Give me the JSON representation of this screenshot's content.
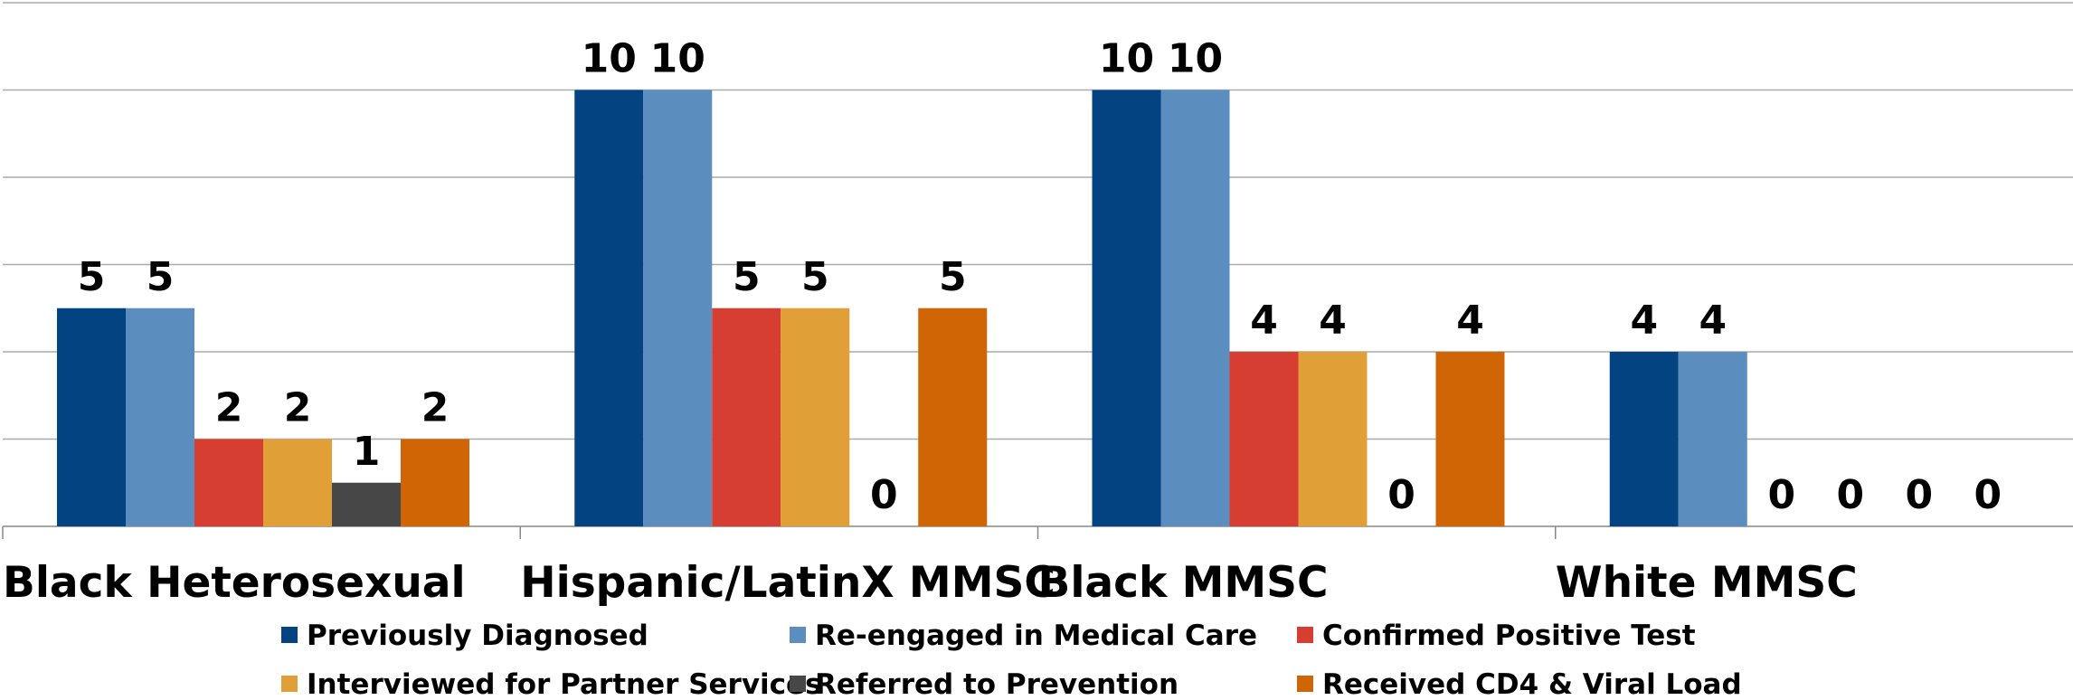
{
  "chart_data": {
    "type": "bar",
    "categories": [
      "Black Heterosexual",
      "Hispanic/LatinX MMSC",
      "Black MMSC",
      "White MMSC"
    ],
    "series": [
      {
        "name": "Previously Diagnosed",
        "color": "#034382",
        "values": [
          5,
          10,
          10,
          4
        ]
      },
      {
        "name": "Re-engaged in Medical Care",
        "color": "#5b8dbe",
        "values": [
          5,
          10,
          10,
          4
        ]
      },
      {
        "name": "Confirmed Positive Test",
        "color": "#d63e31",
        "values": [
          2,
          5,
          4,
          0
        ]
      },
      {
        "name": "Interviewed for Partner Services",
        "color": "#e0a037",
        "values": [
          2,
          5,
          4,
          0
        ]
      },
      {
        "name": "Referred to Prevention",
        "color": "#474747",
        "values": [
          1,
          0,
          0,
          0
        ]
      },
      {
        "name": "Received CD4 & Viral Load",
        "color": "#d06505",
        "values": [
          2,
          5,
          4,
          0
        ]
      }
    ],
    "ylim": [
      0,
      12
    ],
    "yticks": [
      0,
      2,
      4,
      6,
      8,
      10,
      12
    ],
    "grid": true
  }
}
